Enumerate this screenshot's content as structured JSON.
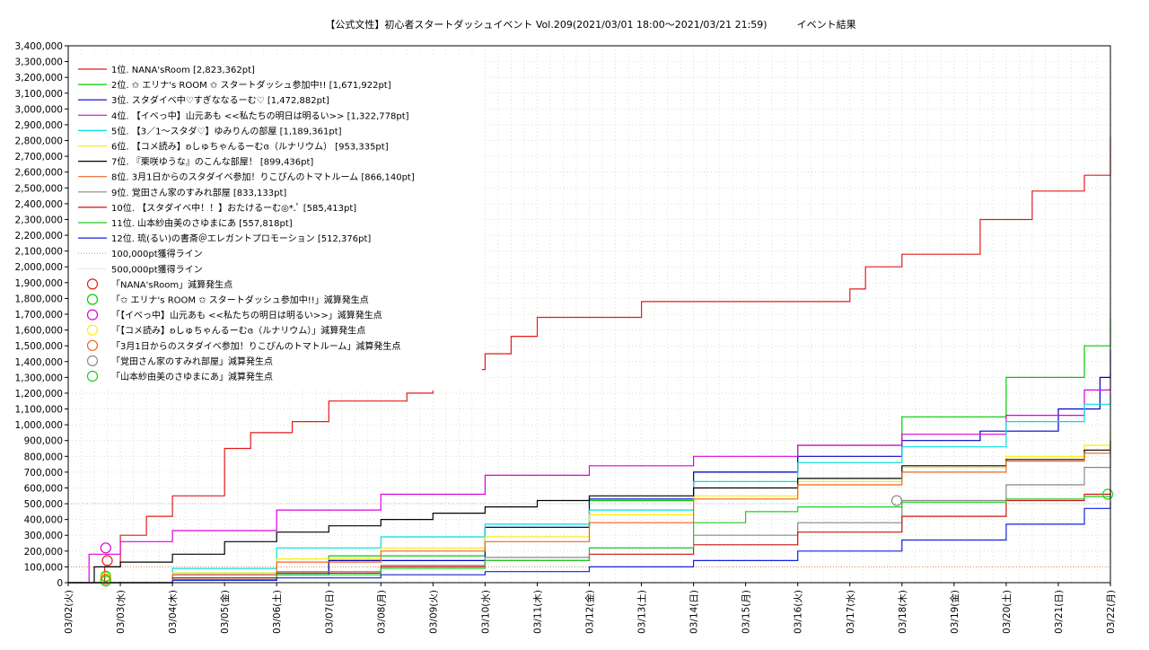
{
  "chart_data": {
    "type": "line",
    "title": "【公式文性】初心者スタートダッシュイベント Vol.209(2021/03/01 18:00〜2021/03/21 21:59)　　　イベント結果",
    "xlabel": "",
    "ylabel": "",
    "x_ticks": [
      "03/02(火)",
      "03/03(水)",
      "03/04(木)",
      "03/05(金)",
      "03/06(土)",
      "03/07(日)",
      "03/08(月)",
      "03/09(火)",
      "03/10(水)",
      "03/11(木)",
      "03/12(金)",
      "03/13(土)",
      "03/14(日)",
      "03/15(月)",
      "03/16(火)",
      "03/17(水)",
      "03/18(木)",
      "03/19(金)",
      "03/20(土)",
      "03/21(日)",
      "03/22(月)"
    ],
    "xlim": [
      0,
      20
    ],
    "ylim": [
      0,
      3400000
    ],
    "y_ticks": [
      "0",
      "100,000",
      "200,000",
      "300,000",
      "400,000",
      "500,000",
      "600,000",
      "700,000",
      "800,000",
      "900,000",
      "1,000,000",
      "1,100,000",
      "1,200,000",
      "1,300,000",
      "1,400,000",
      "1,500,000",
      "1,600,000",
      "1,700,000",
      "1,800,000",
      "1,900,000",
      "2,000,000",
      "2,100,000",
      "2,200,000",
      "2,300,000",
      "2,400,000",
      "2,500,000",
      "2,600,000",
      "2,700,000",
      "2,800,000",
      "2,900,000",
      "3,000,000",
      "3,100,000",
      "3,200,000",
      "3,300,000",
      "3,400,000"
    ],
    "y_tick_values": [
      0,
      100000,
      200000,
      300000,
      400000,
      500000,
      600000,
      700000,
      800000,
      900000,
      1000000,
      1100000,
      1200000,
      1300000,
      1400000,
      1500000,
      1600000,
      1700000,
      1800000,
      1900000,
      2000000,
      2100000,
      2200000,
      2300000,
      2400000,
      2500000,
      2600000,
      2700000,
      2800000,
      2900000,
      3000000,
      3100000,
      3200000,
      3300000,
      3400000
    ],
    "grid": true,
    "legend_position": "top-left",
    "series": [
      {
        "name": "1位. NANA'sRoom [2,823,362pt]",
        "color": "#e41a1c",
        "x": [
          0,
          0.7,
          1.0,
          1.5,
          2.0,
          3.0,
          3.5,
          4.3,
          5.0,
          6.5,
          7.0,
          8.0,
          8.5,
          9.0,
          11.0,
          15.0,
          15.3,
          16.0,
          17.5,
          18.5,
          19.5,
          20.0
        ],
        "y": [
          0,
          100000,
          300000,
          420000,
          550000,
          850000,
          950000,
          1020000,
          1150000,
          1200000,
          1350000,
          1450000,
          1560000,
          1680000,
          1780000,
          1860000,
          2000000,
          2080000,
          2300000,
          2480000,
          2580000,
          2823362
        ]
      },
      {
        "name": "2位. ✩ エリナ's ROOM ✩ スタートダッシュ参加中!! [1,671,922pt]",
        "color": "#00cc00",
        "x": [
          0,
          2.0,
          5.0,
          8.0,
          10.0,
          12.0,
          14.0,
          16.0,
          18.0,
          19.5,
          20.0
        ],
        "y": [
          0,
          60000,
          170000,
          350000,
          520000,
          700000,
          870000,
          1050000,
          1300000,
          1500000,
          1671922
        ]
      },
      {
        "name": "3位. スタダイベ中♡すぎななるーむ♡ [1,472,882pt]",
        "color": "#0000cc",
        "x": [
          0,
          2.0,
          5.0,
          8.0,
          10.0,
          12.0,
          14.0,
          16.0,
          17.5,
          19.0,
          19.8,
          20.0
        ],
        "y": [
          0,
          50000,
          140000,
          350000,
          530000,
          700000,
          800000,
          900000,
          960000,
          1100000,
          1300000,
          1472882
        ]
      },
      {
        "name": "4位. 【イベっ中】山元あも <<私たちの明日は明るい>> [1,322,778pt]",
        "color": "#dd00dd",
        "x": [
          0,
          0.4,
          1.0,
          2.0,
          4.0,
          6.0,
          8.0,
          10.0,
          12.0,
          14.0,
          16.0,
          18.0,
          19.5,
          20.0
        ],
        "y": [
          0,
          180000,
          260000,
          330000,
          460000,
          560000,
          680000,
          740000,
          800000,
          870000,
          940000,
          1060000,
          1220000,
          1322778
        ]
      },
      {
        "name": "5位. 【3／1〜スタダ♡】ゆみりんの部屋 [1,189,361pt]",
        "color": "#00dddd",
        "x": [
          0,
          2.0,
          4.0,
          6.0,
          8.0,
          10.0,
          12.0,
          14.0,
          16.0,
          18.0,
          19.5,
          20.0
        ],
        "y": [
          0,
          90000,
          220000,
          290000,
          370000,
          460000,
          640000,
          760000,
          860000,
          1020000,
          1130000,
          1189361
        ]
      },
      {
        "name": "6位. 【コメ読み】ʚしゅちゃんるーむɞ（ルナリウム） [953,335pt]",
        "color": "#ffee00",
        "x": [
          0,
          2.0,
          4.0,
          6.0,
          8.0,
          10.0,
          12.0,
          14.0,
          16.0,
          18.0,
          19.5,
          20.0
        ],
        "y": [
          0,
          60000,
          150000,
          220000,
          290000,
          430000,
          550000,
          640000,
          730000,
          800000,
          870000,
          953335
        ]
      },
      {
        "name": "7位. 『栗咲ゆうな』のこんな部屋！ [899,436pt]",
        "color": "#000000",
        "x": [
          0,
          0.5,
          1.0,
          2.0,
          3.0,
          4.0,
          5.0,
          6.0,
          7.0,
          8.0,
          9.0,
          10.0,
          12.0,
          14.0,
          16.0,
          18.0,
          19.5,
          20.0
        ],
        "y": [
          0,
          100000,
          130000,
          180000,
          260000,
          320000,
          360000,
          400000,
          440000,
          480000,
          520000,
          550000,
          600000,
          660000,
          740000,
          780000,
          840000,
          899436
        ]
      },
      {
        "name": "8位. 3月1日からのスタダイベ参加！りこぴんのトマトルーム [866,140pt]",
        "color": "#ee6622",
        "x": [
          0,
          2.0,
          4.0,
          6.0,
          8.0,
          10.0,
          12.0,
          14.0,
          16.0,
          18.0,
          19.5,
          20.0
        ],
        "y": [
          0,
          50000,
          130000,
          200000,
          260000,
          380000,
          530000,
          620000,
          700000,
          770000,
          820000,
          866140
        ]
      },
      {
        "name": "9位. 覚田さん家のすみれ部屋 [833,133pt]",
        "color": "#888888",
        "x": [
          0,
          2.0,
          4.0,
          6.0,
          8.0,
          10.0,
          12.0,
          14.0,
          16.0,
          18.0,
          19.5,
          20.0
        ],
        "y": [
          0,
          30000,
          70000,
          110000,
          160000,
          220000,
          300000,
          380000,
          520000,
          620000,
          730000,
          833133
        ]
      },
      {
        "name": "10位. 【スタダイベ中！！】おたけるーむ◎*.ﾟ [585,413pt]",
        "color": "#cc1111",
        "x": [
          0,
          2.0,
          4.0,
          6.0,
          8.0,
          10.0,
          12.0,
          14.0,
          16.0,
          18.0,
          19.5,
          20.0
        ],
        "y": [
          0,
          30000,
          60000,
          100000,
          140000,
          180000,
          240000,
          320000,
          420000,
          520000,
          560000,
          585413
        ]
      },
      {
        "name": "11位. 山本紗由美のさゆまにあ [557,818pt]",
        "color": "#22cc22",
        "x": [
          0,
          2.0,
          4.0,
          6.0,
          8.0,
          10.0,
          12.0,
          13.0,
          14.0,
          16.0,
          18.0,
          19.5,
          20.0
        ],
        "y": [
          0,
          20000,
          50000,
          90000,
          140000,
          220000,
          380000,
          450000,
          480000,
          510000,
          530000,
          545000,
          557818
        ]
      },
      {
        "name": "12位. 琉(るい)の書斎＠エレガントプロモーション [512,376pt]",
        "color": "#1122dd",
        "x": [
          0,
          2.0,
          4.0,
          6.0,
          8.0,
          10.0,
          12.0,
          14.0,
          16.0,
          18.0,
          19.5,
          20.0
        ],
        "y": [
          0,
          15000,
          30000,
          50000,
          70000,
          100000,
          140000,
          200000,
          270000,
          370000,
          470000,
          512376
        ]
      }
    ],
    "reference_lines": [
      {
        "name": "100,000pt獲得ライン",
        "color": "#ee8866",
        "value": 100000
      },
      {
        "name": "500,000pt獲得ライン",
        "color": "#bbbbbb",
        "value": 500000
      }
    ],
    "markers_legend": [
      {
        "name": "「NANA'sRoom」減算発生点",
        "color": "#e41a1c"
      },
      {
        "name": "「✩ エリナ's ROOM ✩ スタートダッシュ参加中!!」減算発生点",
        "color": "#00cc00"
      },
      {
        "name": "「【イベっ中】山元あも <<私たちの明日は明るい>>」減算発生点",
        "color": "#dd00dd"
      },
      {
        "name": "「【コメ読み】ʚしゅちゃんるーむɞ（ルナリウム）」減算発生点",
        "color": "#ffee00"
      },
      {
        "name": "「3月1日からのスタダイベ参加！りこぴんのトマトルーム」減算発生点",
        "color": "#ee6622"
      },
      {
        "name": "「覚田さん家のすみれ部屋」減算発生点",
        "color": "#888888"
      },
      {
        "name": "「山本紗由美のさゆまにあ」減算発生点",
        "color": "#22cc22"
      }
    ],
    "marker_points": [
      {
        "x": 0.75,
        "y": 140000,
        "color": "#e41a1c"
      },
      {
        "x": 0.72,
        "y": 40000,
        "color": "#00cc00"
      },
      {
        "x": 0.72,
        "y": 220000,
        "color": "#dd00dd"
      },
      {
        "x": 0.72,
        "y": 30000,
        "color": "#ffee00"
      },
      {
        "x": 0.72,
        "y": 20000,
        "color": "#ee6622"
      },
      {
        "x": 15.9,
        "y": 520000,
        "color": "#888888"
      },
      {
        "x": 0.72,
        "y": 10000,
        "color": "#22cc22"
      },
      {
        "x": 19.95,
        "y": 560000,
        "color": "#22cc22"
      }
    ]
  }
}
